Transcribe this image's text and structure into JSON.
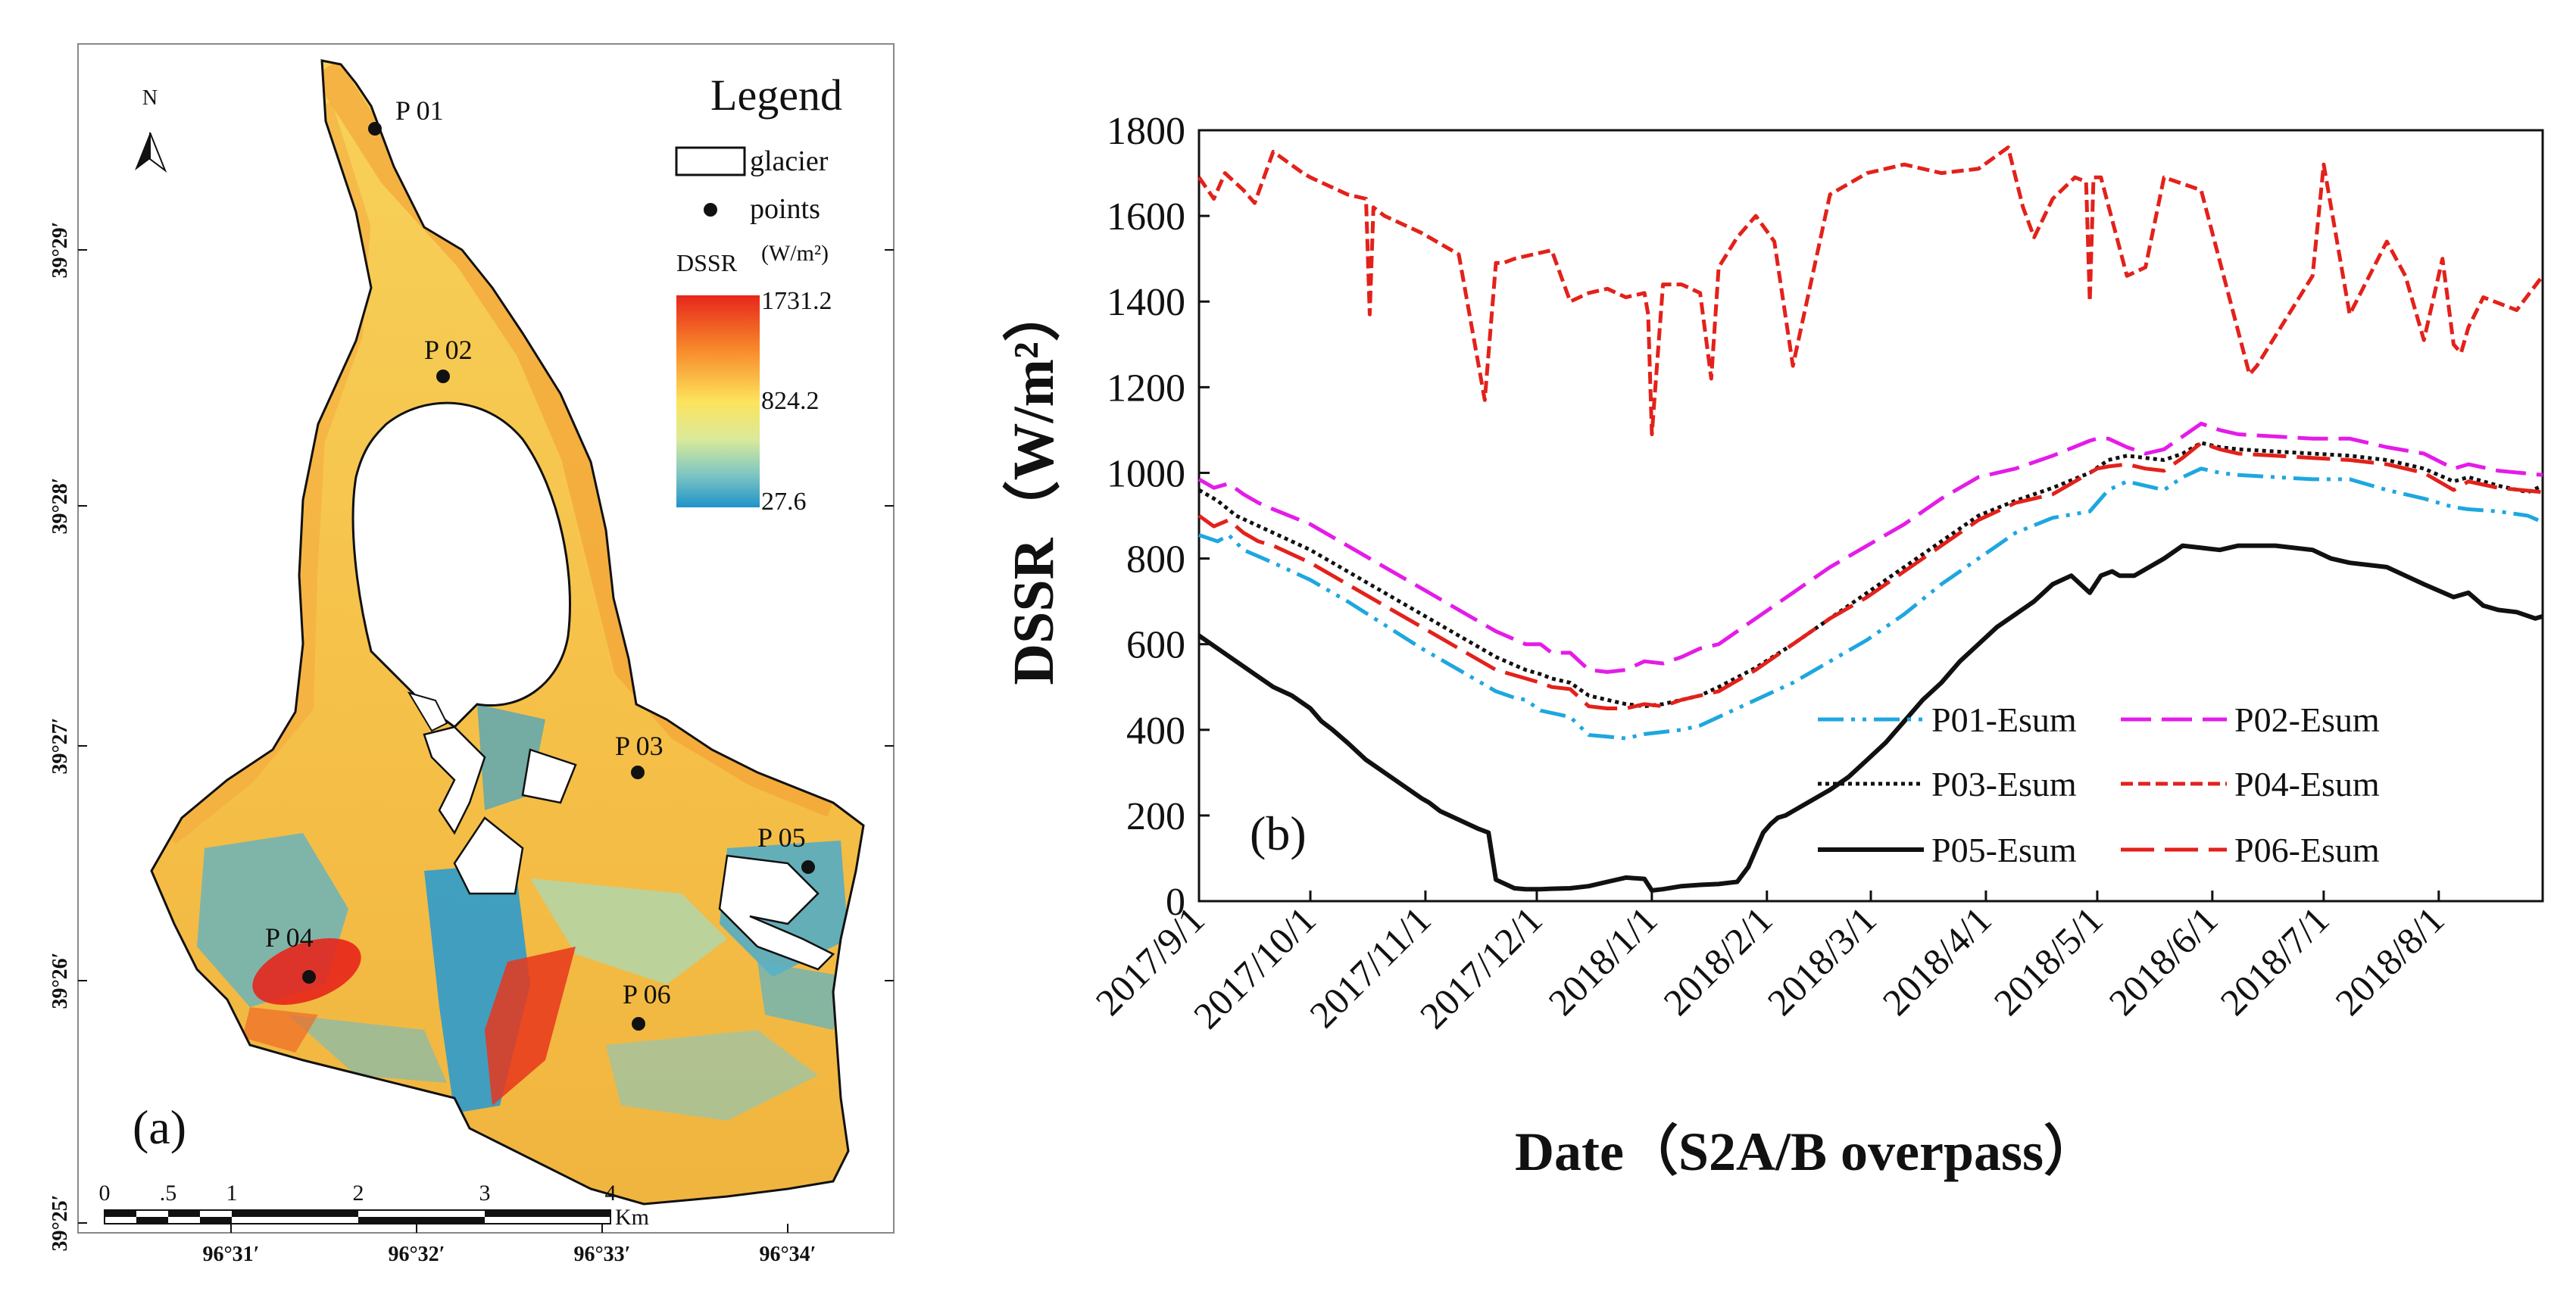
{
  "map": {
    "panel_label": "(a)",
    "north_label": "N",
    "legend": {
      "title": "Legend",
      "glacier_label": "glacier",
      "points_label": "points",
      "dssr_label": "DSSR",
      "unit_label": "(W/m²)",
      "max_value": "1731.2",
      "mid_value": "824.2",
      "min_value": "27.6",
      "colors": [
        "#e7261c",
        "#f7872a",
        "#fde35c",
        "#d9ea9a",
        "#7cc5c4",
        "#1f93c8"
      ]
    },
    "points": [
      {
        "name": "P 01",
        "label": "P 01"
      },
      {
        "name": "P 02",
        "label": "P 02"
      },
      {
        "name": "P 03",
        "label": "P 03"
      },
      {
        "name": "P 04",
        "label": "P 04"
      },
      {
        "name": "P 05",
        "label": "P 05"
      },
      {
        "name": "P 06",
        "label": "P 06"
      }
    ],
    "lat_ticks": [
      "39°29′",
      "39°28′",
      "39°27′",
      "39°26′",
      "39°25′"
    ],
    "lon_ticks": [
      "96°31′",
      "96°32′",
      "96°33′",
      "96°34′"
    ],
    "scalebar": {
      "labels": [
        "0",
        ".5",
        "1",
        "2",
        "3",
        "4"
      ],
      "unit": "Km"
    }
  },
  "chart_data": {
    "type": "line",
    "panel_label": "(b)",
    "title": "",
    "xlabel": "Date（S2A/B overpass）",
    "ylabel": "DSSR（W/m²）",
    "ylim": [
      0,
      1800
    ],
    "yticks": [
      0,
      200,
      400,
      600,
      800,
      1000,
      1200,
      1400,
      1600,
      1800
    ],
    "ytick_labels": [
      "0",
      "200",
      "400",
      "600",
      "800",
      "1000",
      "1200",
      "1400",
      "1600",
      "1800"
    ],
    "xlim_days": [
      0,
      362
    ],
    "xticks": [
      {
        "label": "2017/9/1",
        "day": 0
      },
      {
        "label": "2017/10/1",
        "day": 30
      },
      {
        "label": "2017/11/1",
        "day": 61
      },
      {
        "label": "2017/12/1",
        "day": 91
      },
      {
        "label": "2018/1/1",
        "day": 122
      },
      {
        "label": "2018/2/1",
        "day": 153
      },
      {
        "label": "2018/3/1",
        "day": 181
      },
      {
        "label": "2018/4/1",
        "day": 212
      },
      {
        "label": "2018/5/1",
        "day": 242
      },
      {
        "label": "2018/6/1",
        "day": 273
      },
      {
        "label": "2018/7/1",
        "day": 303
      },
      {
        "label": "2018/8/1",
        "day": 334
      }
    ],
    "series": [
      {
        "name": "P01-Esum",
        "color": "#1ea7df",
        "dash": "34,10,5,10,5,10",
        "x": [
          0,
          5,
          8,
          12,
          20,
          30,
          40,
          50,
          60,
          70,
          80,
          85,
          88,
          92,
          100,
          105,
          110,
          115,
          120,
          125,
          130,
          135,
          140,
          150,
          160,
          170,
          180,
          190,
          200,
          210,
          220,
          230,
          240,
          245,
          250,
          255,
          260,
          265,
          270,
          275,
          280,
          290,
          300,
          310,
          320,
          330,
          338,
          342,
          350,
          358,
          362
        ],
        "y": [
          855,
          840,
          855,
          820,
          790,
          750,
          700,
          645,
          590,
          540,
          490,
          475,
          470,
          445,
          430,
          388,
          384,
          380,
          390,
          395,
          400,
          410,
          430,
          470,
          510,
          560,
          610,
          670,
          740,
          800,
          860,
          895,
          910,
          960,
          980,
          970,
          960,
          990,
          1010,
          1000,
          995,
          990,
          985,
          985,
          960,
          940,
          920,
          915,
          910,
          900,
          885
        ]
      },
      {
        "name": "P02-Esum",
        "color": "#e41ce8",
        "dash": "40,14",
        "x": [
          0,
          4,
          8,
          12,
          16,
          20,
          30,
          40,
          50,
          60,
          70,
          80,
          88,
          92,
          95,
          100,
          105,
          110,
          115,
          120,
          125,
          130,
          135,
          140,
          150,
          160,
          170,
          180,
          190,
          200,
          210,
          220,
          230,
          240,
          242,
          245,
          250,
          255,
          260,
          265,
          270,
          275,
          280,
          290,
          300,
          310,
          320,
          330,
          338,
          342,
          350,
          362
        ],
        "y": [
          985,
          965,
          975,
          950,
          930,
          915,
          880,
          830,
          780,
          730,
          680,
          630,
          600,
          600,
          580,
          580,
          540,
          535,
          540,
          560,
          555,
          570,
          590,
          600,
          660,
          720,
          780,
          830,
          880,
          940,
          990,
          1010,
          1040,
          1075,
          1080,
          1080,
          1060,
          1045,
          1055,
          1085,
          1115,
          1100,
          1090,
          1085,
          1080,
          1080,
          1060,
          1045,
          1010,
          1020,
          1005,
          995
        ]
      },
      {
        "name": "P03-Esum",
        "color": "#111111",
        "dash": "5,5",
        "x": [
          0,
          5,
          10,
          15,
          20,
          30,
          40,
          50,
          60,
          70,
          80,
          88,
          92,
          95,
          100,
          105,
          110,
          115,
          120,
          125,
          130,
          135,
          140,
          150,
          160,
          170,
          180,
          190,
          200,
          210,
          220,
          230,
          240,
          245,
          250,
          255,
          260,
          265,
          270,
          275,
          280,
          290,
          300,
          310,
          320,
          330,
          338,
          342,
          350,
          358,
          362
        ],
        "y": [
          960,
          935,
          900,
          880,
          860,
          820,
          770,
          720,
          670,
          620,
          570,
          540,
          530,
          520,
          510,
          480,
          470,
          460,
          455,
          460,
          470,
          480,
          500,
          545,
          600,
          660,
          720,
          780,
          840,
          900,
          935,
          965,
          1000,
          1030,
          1040,
          1035,
          1030,
          1045,
          1070,
          1060,
          1055,
          1050,
          1045,
          1040,
          1030,
          1010,
          980,
          990,
          970,
          955,
          970
        ]
      },
      {
        "name": "P04-Esum",
        "color": "#e3211b",
        "dash": "16,7",
        "x": [
          0,
          4,
          7,
          12,
          15,
          20,
          28,
          30,
          40,
          45,
          46,
          47,
          50,
          60,
          70,
          77,
          80,
          82,
          85,
          90,
          95,
          100,
          105,
          110,
          115,
          120,
          121,
          122,
          125,
          130,
          135,
          138,
          140,
          145,
          150,
          155,
          160,
          170,
          180,
          190,
          200,
          210,
          218,
          222,
          225,
          230,
          236,
          239,
          240,
          241,
          243,
          250,
          255,
          260,
          270,
          283,
          285,
          290,
          300,
          303,
          310,
          320,
          325,
          330,
          335,
          338,
          340,
          342,
          346,
          355,
          362
        ],
        "y": [
          1690,
          1640,
          1700,
          1660,
          1630,
          1750,
          1700,
          1690,
          1650,
          1640,
          1370,
          1620,
          1600,
          1560,
          1510,
          1170,
          1490,
          1490,
          1500,
          1510,
          1520,
          1400,
          1420,
          1430,
          1410,
          1420,
          1370,
          1090,
          1440,
          1440,
          1420,
          1220,
          1480,
          1550,
          1600,
          1540,
          1250,
          1650,
          1700,
          1720,
          1700,
          1710,
          1760,
          1620,
          1550,
          1640,
          1690,
          1680,
          1400,
          1690,
          1690,
          1460,
          1480,
          1690,
          1660,
          1230,
          1250,
          1320,
          1460,
          1720,
          1370,
          1540,
          1460,
          1310,
          1500,
          1300,
          1280,
          1340,
          1410,
          1380,
          1460
        ]
      },
      {
        "name": "P05-Esum",
        "color": "#111111",
        "dash": "",
        "x": [
          0,
          5,
          10,
          15,
          20,
          25,
          30,
          33,
          36,
          40,
          45,
          50,
          55,
          60,
          62,
          65,
          70,
          75,
          78,
          80,
          85,
          88,
          90,
          92,
          95,
          100,
          105,
          110,
          115,
          120,
          122,
          125,
          130,
          135,
          140,
          145,
          148,
          150,
          152,
          154,
          156,
          158,
          160,
          165,
          170,
          175,
          180,
          185,
          190,
          195,
          200,
          205,
          210,
          215,
          220,
          225,
          230,
          235,
          240,
          243,
          246,
          248,
          252,
          260,
          265,
          270,
          275,
          280,
          290,
          300,
          305,
          310,
          320,
          325,
          330,
          338,
          342,
          346,
          350,
          355,
          360,
          362
        ],
        "y": [
          620,
          590,
          560,
          530,
          500,
          480,
          450,
          420,
          400,
          370,
          330,
          300,
          270,
          240,
          230,
          210,
          190,
          170,
          160,
          50,
          30,
          28,
          28,
          28,
          29,
          30,
          35,
          45,
          55,
          52,
          25,
          28,
          35,
          38,
          40,
          45,
          80,
          120,
          160,
          180,
          195,
          200,
          210,
          235,
          260,
          290,
          330,
          370,
          420,
          470,
          510,
          560,
          600,
          640,
          670,
          700,
          740,
          760,
          720,
          760,
          770,
          760,
          760,
          800,
          830,
          825,
          820,
          830,
          830,
          820,
          800,
          790,
          780,
          760,
          740,
          710,
          720,
          690,
          680,
          675,
          660,
          665
        ]
      },
      {
        "name": "P06-Esum",
        "color": "#e3211b",
        "dash": "44,14",
        "x": [
          0,
          4,
          8,
          12,
          16,
          20,
          30,
          40,
          50,
          60,
          70,
          80,
          88,
          92,
          95,
          100,
          105,
          110,
          115,
          120,
          125,
          130,
          135,
          140,
          150,
          160,
          170,
          180,
          190,
          200,
          210,
          220,
          230,
          240,
          242,
          245,
          250,
          255,
          260,
          265,
          270,
          275,
          280,
          290,
          300,
          310,
          320,
          330,
          338,
          342,
          350,
          362
        ],
        "y": [
          900,
          875,
          890,
          860,
          840,
          830,
          790,
          740,
          690,
          640,
          590,
          540,
          520,
          510,
          500,
          495,
          455,
          450,
          450,
          460,
          455,
          470,
          480,
          490,
          540,
          600,
          660,
          710,
          770,
          830,
          890,
          930,
          950,
          1000,
          1010,
          1015,
          1020,
          1010,
          1005,
          1035,
          1070,
          1055,
          1045,
          1040,
          1035,
          1030,
          1020,
          1000,
          960,
          980,
          965,
          955
        ]
      }
    ]
  }
}
